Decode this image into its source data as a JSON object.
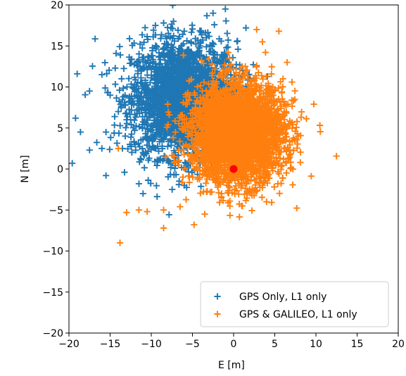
{
  "chart_data": {
    "type": "scatter",
    "xlabel": "E [m]",
    "ylabel": "N [m]",
    "xlim": [
      -20,
      20
    ],
    "ylim": [
      -20,
      20
    ],
    "xticks": [
      -20,
      -15,
      -10,
      -5,
      0,
      5,
      10,
      15,
      20
    ],
    "yticks": [
      -20,
      -15,
      -10,
      -5,
      0,
      5,
      10,
      15,
      20
    ],
    "grid": false,
    "legend_position": "bottom-right",
    "marker": "+",
    "series": [
      {
        "name": "GPS Only, L1 only",
        "color": "#1f77b4",
        "center": [
          -6,
          8.5
        ],
        "spread": [
          3.2,
          3.5
        ],
        "count": 2600,
        "sample_outliers": [
          [
            -19,
            11.6
          ],
          [
            -19.2,
            6.2
          ],
          [
            -18.6,
            4.5
          ],
          [
            -17.5,
            9.5
          ],
          [
            -16,
            11.5
          ],
          [
            -15,
            9
          ],
          [
            -14,
            7
          ],
          [
            -13,
            6
          ],
          [
            -12.6,
            3
          ],
          [
            -13.5,
            2.5
          ],
          [
            -11,
            2
          ],
          [
            -10.5,
            4
          ],
          [
            -16,
            2.5
          ],
          [
            -15.5,
            4.5
          ],
          [
            -17.5,
            2.3
          ],
          [
            -19.6,
            0.7
          ],
          [
            -9.5,
            17.5
          ],
          [
            -8.5,
            17.8
          ],
          [
            -6,
            16.8
          ],
          [
            -2.5,
            19
          ],
          [
            -1,
            19.5
          ],
          [
            1.5,
            17.2
          ],
          [
            -15.5,
            -0.8
          ],
          [
            -11.5,
            -1.8
          ],
          [
            -11,
            -3
          ],
          [
            -6,
            -2
          ],
          [
            -8,
            14.5
          ],
          [
            -4,
            15.5
          ]
        ]
      },
      {
        "name": "GPS & GALILEO, L1 only",
        "color": "#ff7f0e",
        "center": [
          0.5,
          4.3
        ],
        "spread": [
          2.8,
          3
        ],
        "count": 3300,
        "sample_outliers": [
          [
            -13.8,
            -9
          ],
          [
            -8.5,
            -7.2
          ],
          [
            -4.8,
            -6.8
          ],
          [
            -13,
            -5.3
          ],
          [
            -11.5,
            -5
          ],
          [
            -10.5,
            -5.2
          ],
          [
            -8.5,
            -5
          ],
          [
            -6.5,
            -4.6
          ],
          [
            -3.5,
            -5.5
          ],
          [
            -1.5,
            -3.5
          ],
          [
            1,
            -4.5
          ],
          [
            4,
            -4
          ],
          [
            -14,
            2.5
          ],
          [
            2.8,
            17
          ],
          [
            3.5,
            15.5
          ],
          [
            5.5,
            16.8
          ],
          [
            6,
            11
          ],
          [
            8.2,
            6.3
          ],
          [
            7.5,
            4.6
          ],
          [
            5.5,
            2.3
          ],
          [
            4,
            1.5
          ],
          [
            6.5,
            13
          ],
          [
            -0.5,
            13.5
          ]
        ]
      },
      {
        "name": "",
        "color": "#ff0000",
        "marker": "o",
        "x": [
          0
        ],
        "y": [
          0
        ]
      }
    ]
  }
}
